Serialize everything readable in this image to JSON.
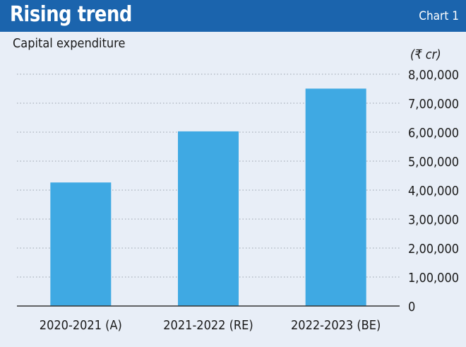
{
  "header": {
    "title": "Rising trend",
    "chart_label": "Chart 1"
  },
  "colors": {
    "header_bg": "#1b64ad",
    "page_bg": "#e8eef7",
    "bar": "#3fa9e3"
  },
  "chart_data": {
    "type": "bar",
    "title": "Capital expenditure",
    "unit": "(₹ cr)",
    "categories": [
      "2020-2021 (A)",
      "2021-2022 (RE)",
      "2022-2023 (BE)"
    ],
    "values": [
      426317,
      602711,
      750246
    ],
    "ylim": [
      0,
      800000
    ],
    "yticks": [
      0,
      100000,
      200000,
      300000,
      400000,
      500000,
      600000,
      700000,
      800000
    ],
    "ytick_labels": [
      "0",
      "1,00,000",
      "2,00,000",
      "3,00,000",
      "4,00,000",
      "5,00,000",
      "6,00,000",
      "7,00,000",
      "8,00,000"
    ],
    "grid": "dotted horizontal",
    "y_axis_position": "right"
  }
}
